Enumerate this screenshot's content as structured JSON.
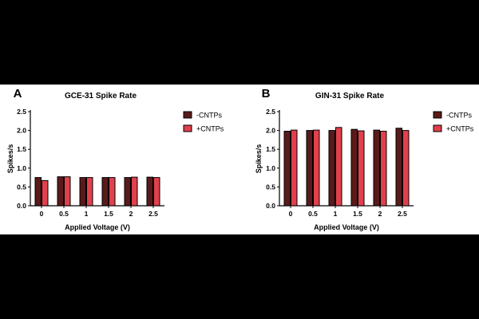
{
  "chart_data": [
    {
      "panel": "A",
      "type": "bar",
      "title": "GCE-31 Spike Rate",
      "xlabel": "Applied Voltage (V)",
      "ylabel": "Spikes/s",
      "categories": [
        "0",
        "0.5",
        "1",
        "1.5",
        "2",
        "2.5"
      ],
      "ylim": [
        0,
        2.5
      ],
      "yticks": [
        "0.0",
        "0.5",
        "1.0",
        "1.5",
        "2.0",
        "2.5"
      ],
      "series": [
        {
          "name": "-CNTPs",
          "color": "#5a1a1a",
          "values": [
            0.75,
            0.77,
            0.75,
            0.75,
            0.75,
            0.76
          ]
        },
        {
          "name": "+CNTPs",
          "color": "#e0414c",
          "values": [
            0.67,
            0.77,
            0.75,
            0.75,
            0.76,
            0.75
          ]
        }
      ],
      "legend_position": "top-right",
      "grid": false
    },
    {
      "panel": "B",
      "type": "bar",
      "title": "GIN-31 Spike Rate",
      "xlabel": "Applied Voltage (V)",
      "ylabel": "Spikes/s",
      "categories": [
        "0",
        "0.5",
        "1",
        "1.5",
        "2",
        "2.5"
      ],
      "ylim": [
        0,
        2.5
      ],
      "yticks": [
        "0.0",
        "0.5",
        "1.0",
        "1.5",
        "2.0",
        "2.5"
      ],
      "series": [
        {
          "name": "-CNTPs",
          "color": "#5a1a1a",
          "values": [
            1.98,
            2.0,
            2.0,
            2.03,
            2.01,
            2.06
          ]
        },
        {
          "name": "+CNTPs",
          "color": "#e0414c",
          "values": [
            2.01,
            2.01,
            2.08,
            1.99,
            1.98,
            2.0
          ]
        }
      ],
      "legend_position": "top-right",
      "grid": false
    }
  ]
}
